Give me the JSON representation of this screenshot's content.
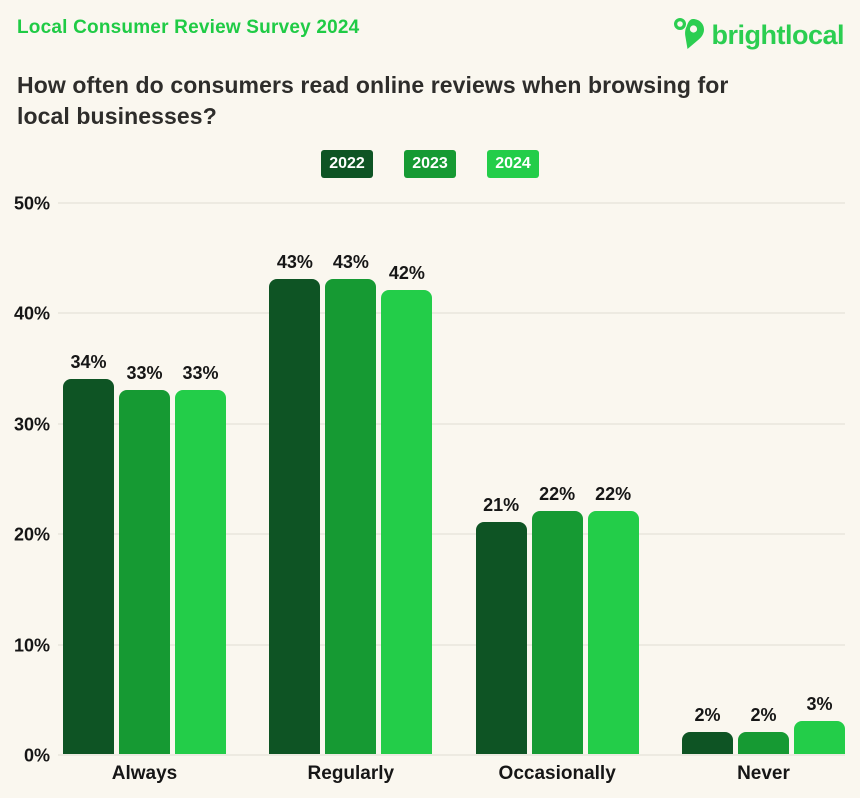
{
  "header": {
    "survey_label": "Local Consumer Review Survey 2024",
    "logo_text": "brightlocal",
    "question": "How often do consumers read online reviews when browsing for local businesses?"
  },
  "colors": {
    "background": "#faf7ef",
    "accent_green": "#1fcb45",
    "logo_green": "#2bce51",
    "gridline": "#edeae1",
    "text_dark": "#2e2d2b",
    "label_black": "#161616",
    "series_2022": "#0e5424",
    "series_2023": "#169a33",
    "series_2024": "#23cd49"
  },
  "chart_data": {
    "type": "bar",
    "title": "How often do consumers read online reviews when browsing for local businesses?",
    "categories": [
      "Always",
      "Regularly",
      "Occasionally",
      "Never"
    ],
    "series": [
      {
        "name": "2022",
        "color": "#0e5424",
        "values": [
          34,
          43,
          21,
          2
        ]
      },
      {
        "name": "2023",
        "color": "#169a33",
        "values": [
          33,
          43,
          22,
          2
        ]
      },
      {
        "name": "2024",
        "color": "#23cd49",
        "values": [
          33,
          42,
          22,
          3
        ]
      }
    ],
    "xlabel": "",
    "ylabel": "",
    "ylim": [
      0,
      50
    ],
    "yticks": [
      0,
      10,
      20,
      30,
      40,
      50
    ],
    "ytick_labels": [
      "0%",
      "10%",
      "20%",
      "30%",
      "40%",
      "50%"
    ],
    "value_label_suffix": "%",
    "grid": true,
    "legend_position": "top-center"
  }
}
